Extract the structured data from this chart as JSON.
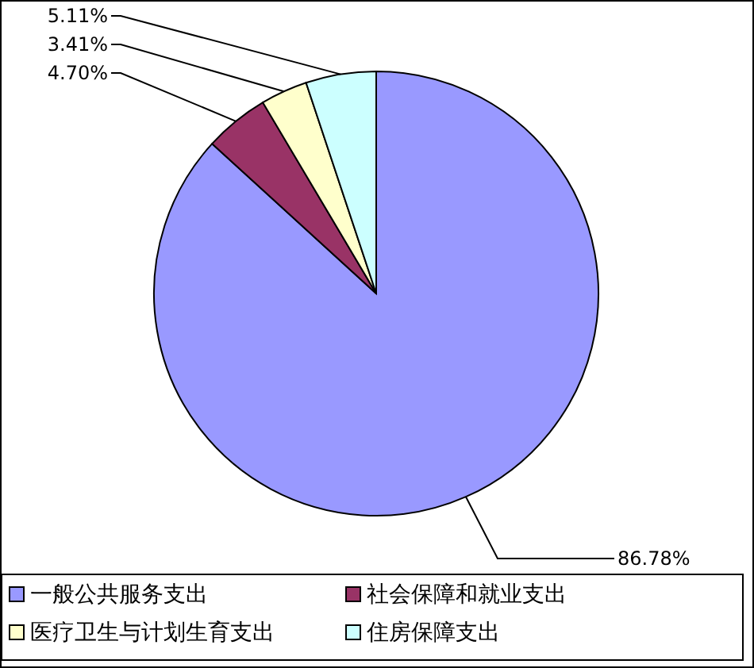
{
  "chart_data": {
    "type": "pie",
    "categories": [
      "一般公共服务支出",
      "社会保障和就业支出",
      "医疗卫生与计划生育支出",
      "住房保障支出"
    ],
    "values": [
      86.78,
      4.7,
      3.41,
      5.11
    ],
    "colors": [
      "#9999ff",
      "#993366",
      "#ffffcc",
      "#ccffff"
    ],
    "value_labels": [
      "86.78%",
      "4.70%",
      "3.41%",
      "5.11%"
    ],
    "legend": "bottom"
  }
}
